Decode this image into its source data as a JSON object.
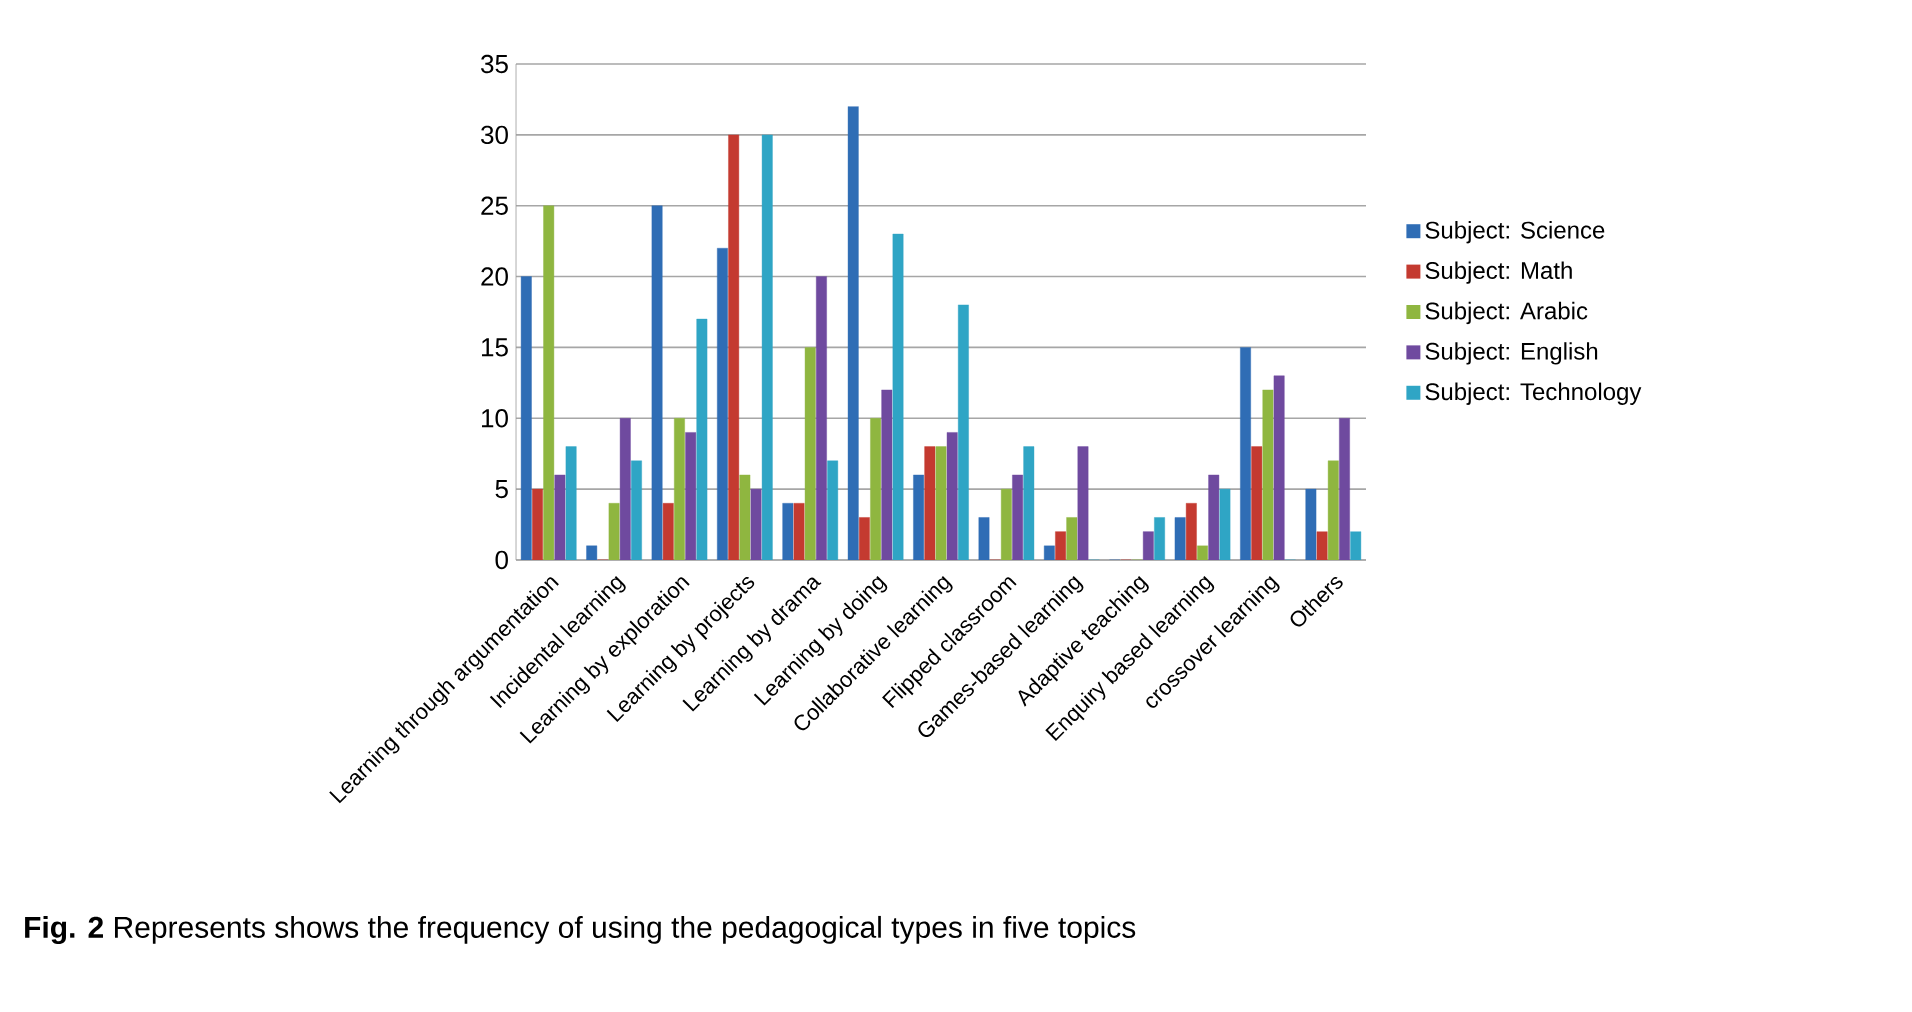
{
  "chart_data": {
    "type": "bar",
    "categories": [
      "Learning through argumentation",
      "Incidental learning",
      "Learning by exploration",
      "Learning by projects",
      "Learning by drama",
      "Learning by doing",
      "Collaborative learning",
      "Flipped classroom",
      "Games-based learning",
      "Adaptive teaching",
      "Enquiry based learning",
      "crossover learning",
      "Others"
    ],
    "series": [
      {
        "name": "Subject: Science",
        "color": "#2f6db5",
        "values": [
          20,
          1,
          25,
          22,
          4,
          32,
          6,
          3,
          1,
          0,
          3,
          15,
          5
        ]
      },
      {
        "name": "Subject: Math",
        "color": "#c43a30",
        "values": [
          5,
          0,
          4,
          30,
          4,
          3,
          8,
          0,
          2,
          0,
          4,
          8,
          2
        ]
      },
      {
        "name": "Subject: Arabic",
        "color": "#8fb640",
        "values": [
          25,
          4,
          10,
          6,
          15,
          10,
          8,
          5,
          3,
          0,
          1,
          12,
          7
        ]
      },
      {
        "name": "Subject: English",
        "color": "#6f4a9f",
        "values": [
          6,
          10,
          9,
          5,
          20,
          12,
          9,
          6,
          8,
          2,
          6,
          13,
          10
        ]
      },
      {
        "name": "Subject: Technology",
        "color": "#2fa5c5",
        "values": [
          8,
          7,
          17,
          30,
          7,
          23,
          18,
          8,
          0,
          3,
          5,
          0,
          2
        ]
      }
    ],
    "ylim": [
      0,
      35
    ],
    "yticks": [
      0,
      5,
      10,
      15,
      20,
      25,
      30,
      35
    ],
    "grid": "y",
    "legend": "right",
    "annotations": [
      "**Fig. 2** Represents shows the frequency of using the pedagogical types in five topics"
    ]
  }
}
